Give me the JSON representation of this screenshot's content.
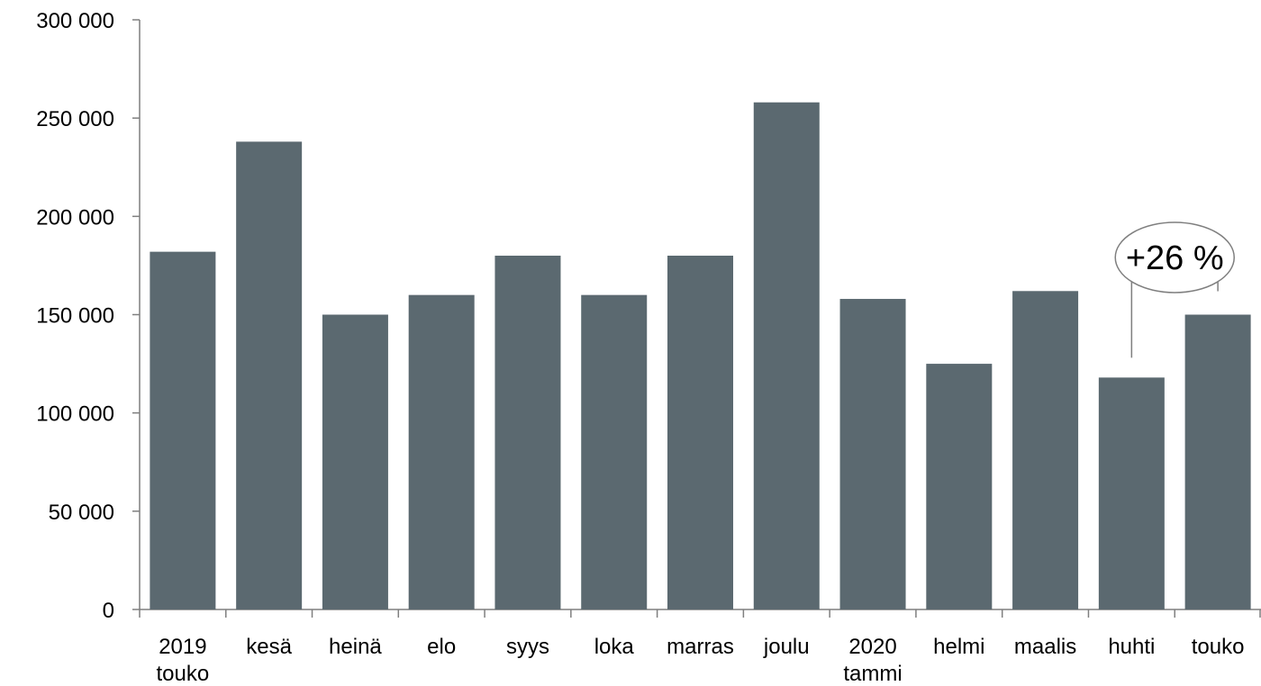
{
  "chart_data": {
    "type": "bar",
    "title": "",
    "xlabel": "",
    "ylabel": "",
    "categories": [
      [
        "2019",
        "touko"
      ],
      [
        "kesä"
      ],
      [
        "heinä"
      ],
      [
        "elo"
      ],
      [
        "syys"
      ],
      [
        "loka"
      ],
      [
        "marras"
      ],
      [
        "joulu"
      ],
      [
        "2020",
        "tammi"
      ],
      [
        "helmi"
      ],
      [
        "maalis"
      ],
      [
        "huhti"
      ],
      [
        "touko"
      ]
    ],
    "values": [
      182000,
      238000,
      150000,
      160000,
      180000,
      160000,
      180000,
      258000,
      158000,
      125000,
      162000,
      118000,
      150000
    ],
    "ylim": [
      0,
      300000
    ],
    "yticks": [
      {
        "value": 0,
        "label": "0"
      },
      {
        "value": 50000,
        "label": "50 000"
      },
      {
        "value": 100000,
        "label": "100 000"
      },
      {
        "value": 150000,
        "label": "150 000"
      },
      {
        "value": 200000,
        "label": "200 000"
      },
      {
        "value": 250000,
        "label": "250 000"
      },
      {
        "value": 300000,
        "label": "300 000"
      }
    ],
    "grid": false,
    "legend": "none",
    "bar_color": "#5b6970",
    "annotation": {
      "text": "+26 %",
      "from_category_index": 11,
      "to_category_index": 12
    }
  }
}
